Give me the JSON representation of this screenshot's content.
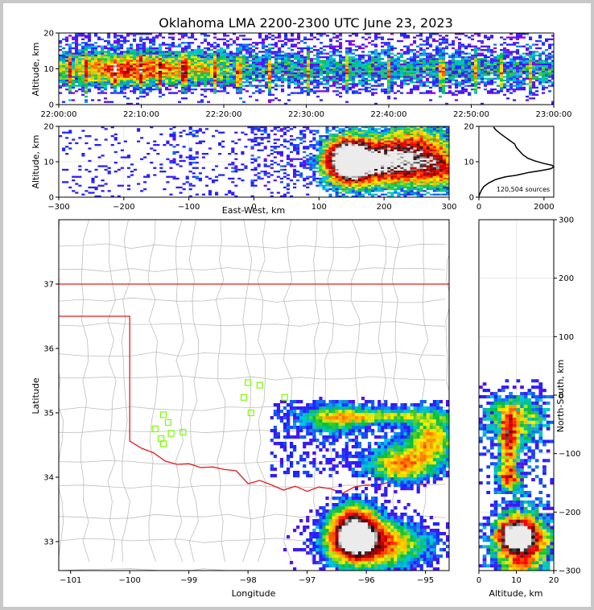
{
  "title": "Oklahoma LMA 2200-2300 UTC June 23, 2023",
  "chart_data": [
    {
      "type": "heatmap",
      "name": "time-height",
      "ylabel": "Altitude, km",
      "xlim": [
        "22:00:00",
        "23:00:00"
      ],
      "ylim": [
        0,
        20
      ],
      "x_ticks": [
        "22:00:00",
        "22:10:00",
        "22:20:00",
        "22:30:00",
        "22:40:00",
        "22:50:00",
        "23:00:00"
      ],
      "y_ticks": [
        "0",
        "10",
        "20"
      ]
    },
    {
      "type": "heatmap",
      "name": "east-west-altitude",
      "xlabel": "East-West, km",
      "ylabel": "Altitude, km",
      "xlim": [
        -300,
        300
      ],
      "ylim": [
        0,
        20
      ],
      "x_ticks": [
        "−300",
        "−200",
        "−100",
        "0",
        "100",
        "200",
        "300"
      ],
      "y_ticks": [
        "0",
        "10",
        "20"
      ]
    },
    {
      "type": "line",
      "name": "altitude-histogram",
      "annotation": "120,504 sources",
      "xlim": [
        0,
        2300
      ],
      "ylim": [
        0,
        20
      ],
      "x_ticks": [
        "0",
        "2000"
      ],
      "y_ticks": [
        "0",
        "10",
        "20"
      ],
      "series": [
        {
          "points": [
            [
              0,
              0.2
            ],
            [
              30,
              1
            ],
            [
              80,
              2
            ],
            [
              150,
              3
            ],
            [
              300,
              4
            ],
            [
              520,
              5
            ],
            [
              800,
              5.7
            ],
            [
              1150,
              6.2
            ],
            [
              1550,
              7
            ],
            [
              1900,
              7.5
            ],
            [
              2200,
              8
            ],
            [
              2300,
              8.5
            ],
            [
              2250,
              9
            ],
            [
              2000,
              9.5
            ],
            [
              1700,
              10.3
            ],
            [
              1500,
              11
            ],
            [
              1350,
              12
            ],
            [
              1250,
              13
            ],
            [
              1150,
              14
            ],
            [
              1100,
              15
            ],
            [
              950,
              16
            ],
            [
              800,
              17
            ],
            [
              650,
              18
            ],
            [
              520,
              19
            ],
            [
              450,
              19.8
            ]
          ]
        }
      ]
    },
    {
      "type": "heatmap",
      "name": "plan-view",
      "xlabel": "Longitude",
      "ylabel": "Latitude",
      "xlim": [
        -101.2,
        -94.6
      ],
      "ylim": [
        32.55,
        38
      ],
      "x_ticks": [
        "−101",
        "−100",
        "−99",
        "−98",
        "−97",
        "−96",
        "−95"
      ],
      "y_ticks": [
        "33",
        "34",
        "35",
        "36",
        "37"
      ],
      "stations": [
        [
          -98.0,
          35.47
        ],
        [
          -97.8,
          35.43
        ],
        [
          -98.07,
          35.24
        ],
        [
          -97.95,
          35.0
        ],
        [
          -97.38,
          35.24
        ],
        [
          -99.43,
          34.97
        ],
        [
          -99.35,
          34.85
        ],
        [
          -99.57,
          34.75
        ],
        [
          -99.3,
          34.68
        ],
        [
          -99.47,
          34.6
        ],
        [
          -99.43,
          34.52
        ],
        [
          -99.1,
          34.7
        ]
      ]
    },
    {
      "type": "heatmap",
      "name": "altitude-north-south",
      "xlabel": "Altitude, km",
      "ylabel": "North-South, km",
      "xlim": [
        0,
        20
      ],
      "ylim": [
        -300,
        300
      ],
      "x_ticks": [
        "0",
        "10",
        "20"
      ],
      "y_ticks": [
        "−300",
        "−200",
        "−100",
        "0",
        "100",
        "200",
        "300"
      ]
    }
  ]
}
